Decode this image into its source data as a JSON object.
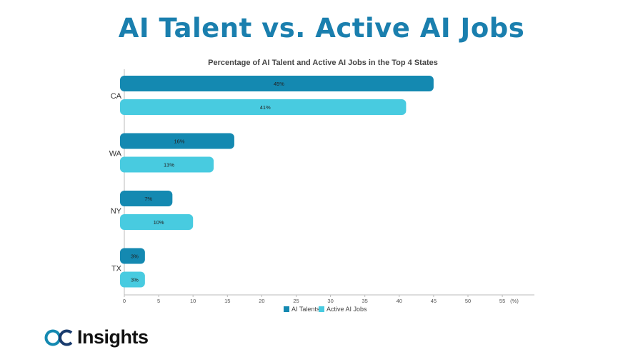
{
  "header": {
    "title": "AI Talent vs. Active AI Jobs"
  },
  "chart_data": {
    "type": "bar",
    "orientation": "horizontal",
    "title": "Percentage of AI Talent and Active AI Jobs in the Top 4 States",
    "categories": [
      "CA",
      "WA",
      "NY",
      "TX"
    ],
    "series": [
      {
        "name": "AI Talents",
        "values": [
          45,
          16,
          7,
          3
        ],
        "labels": [
          "45%",
          "16%",
          "7%",
          "3%"
        ],
        "color": "#1489b1"
      },
      {
        "name": "Active AI Jobs",
        "values": [
          41,
          13,
          10,
          3
        ],
        "labels": [
          "41%",
          "13%",
          "10%",
          "3%"
        ],
        "color": "#48cbe0"
      }
    ],
    "xlim": [
      0,
      60
    ],
    "xticks": [
      0,
      5,
      10,
      15,
      20,
      25,
      30,
      35,
      40,
      45,
      50,
      55
    ],
    "xunit": "(%)",
    "legend_position": "bottom",
    "grid": false
  },
  "branding": {
    "logo_text": "Insights",
    "logo_mark": "OC"
  }
}
